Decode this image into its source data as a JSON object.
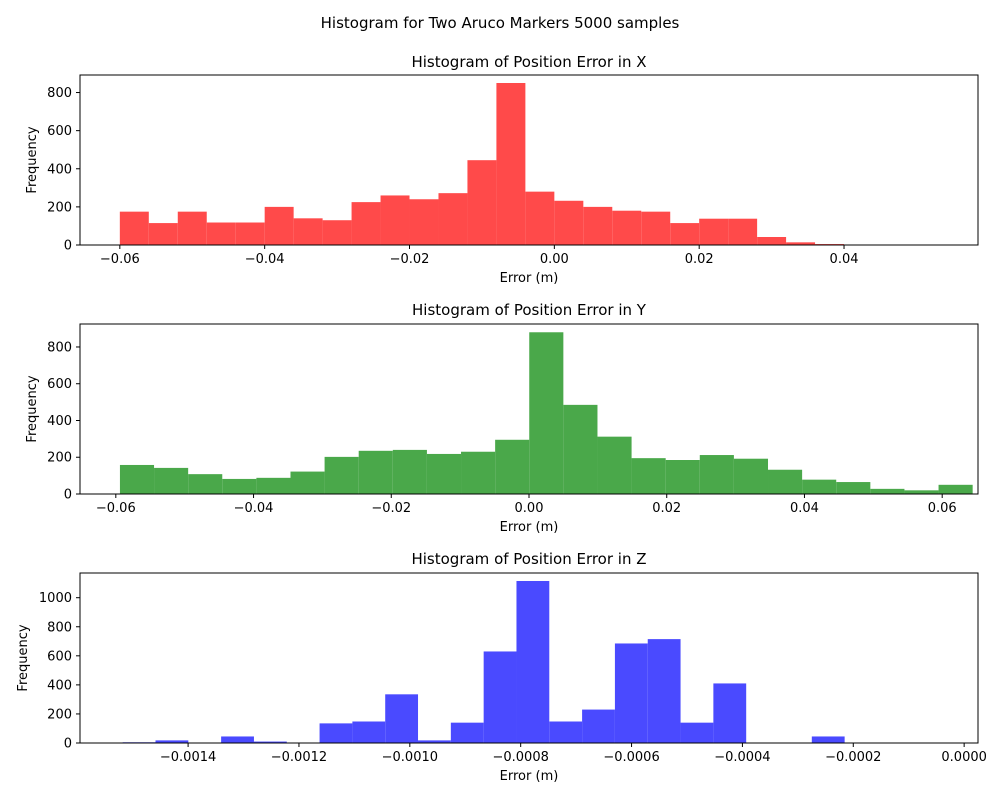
{
  "figure": {
    "suptitle": "Histogram for Two Aruco Markers 5000 samples"
  },
  "chart_data": [
    {
      "type": "bar",
      "histogram": true,
      "title": "Histogram of Position Error in X",
      "xlabel": "Error (m)",
      "ylabel": "Frequency",
      "color": "#ff4a4a",
      "xlim": [
        -0.0655,
        0.0585
      ],
      "ylim": [
        0,
        892
      ],
      "xticks": [
        -0.06,
        -0.04,
        -0.02,
        0.0,
        0.02,
        0.04
      ],
      "xtick_labels": [
        "−0.06",
        "−0.04",
        "−0.02",
        "0.00",
        "0.02",
        "0.04"
      ],
      "yticks": [
        0,
        200,
        400,
        600,
        800
      ],
      "bin_start": -0.06,
      "bin_width": 0.004,
      "counts": [
        175,
        115,
        175,
        118,
        118,
        200,
        140,
        130,
        225,
        260,
        240,
        272,
        445,
        850,
        280,
        232,
        200,
        180,
        175,
        115,
        138,
        138,
        42,
        14,
        5
      ]
    },
    {
      "type": "bar",
      "histogram": true,
      "title": "Histogram of Position Error in Y",
      "xlabel": "Error (m)",
      "ylabel": "Frequency",
      "color": "#4aa84a",
      "xlim": [
        -0.0652,
        0.0652
      ],
      "ylim": [
        0,
        925
      ],
      "xticks": [
        -0.06,
        -0.04,
        -0.02,
        0.0,
        0.02,
        0.04,
        0.06
      ],
      "xtick_labels": [
        "−0.06",
        "−0.04",
        "−0.02",
        "0.00",
        "0.02",
        "0.04",
        "0.06"
      ],
      "yticks": [
        0,
        200,
        400,
        600,
        800
      ],
      "bin_start": -0.0594,
      "bin_width": 0.004953,
      "counts": [
        158,
        142,
        108,
        82,
        88,
        122,
        202,
        235,
        240,
        218,
        230,
        295,
        880,
        485,
        312,
        195,
        185,
        212,
        192,
        132,
        78,
        65,
        28,
        20,
        50
      ]
    },
    {
      "type": "bar",
      "histogram": true,
      "title": "Histogram of Position Error in Z",
      "xlabel": "Error (m)",
      "ylabel": "Frequency",
      "color": "#4a4aff",
      "xlim": [
        -0.001595,
        2.5e-05
      ],
      "ylim": [
        0,
        1170
      ],
      "xticks": [
        -0.0014,
        -0.0012,
        -0.001,
        -0.0008,
        -0.0006,
        -0.0004,
        -0.0002,
        0.0
      ],
      "xtick_labels": [
        "−0.0014",
        "−0.0012",
        "−0.0010",
        "−0.0008",
        "−0.0006",
        "−0.0004",
        "−0.0002",
        "0.0000"
      ],
      "yticks": [
        0,
        200,
        400,
        600,
        800,
        1000
      ],
      "bin_start": -0.001518,
      "bin_width": 5.92e-05,
      "counts": [
        5,
        18,
        0,
        45,
        10,
        3,
        135,
        148,
        335,
        18,
        140,
        630,
        1115,
        148,
        230,
        685,
        715,
        140,
        410,
        3,
        0,
        45,
        0,
        0,
        3
      ]
    }
  ]
}
